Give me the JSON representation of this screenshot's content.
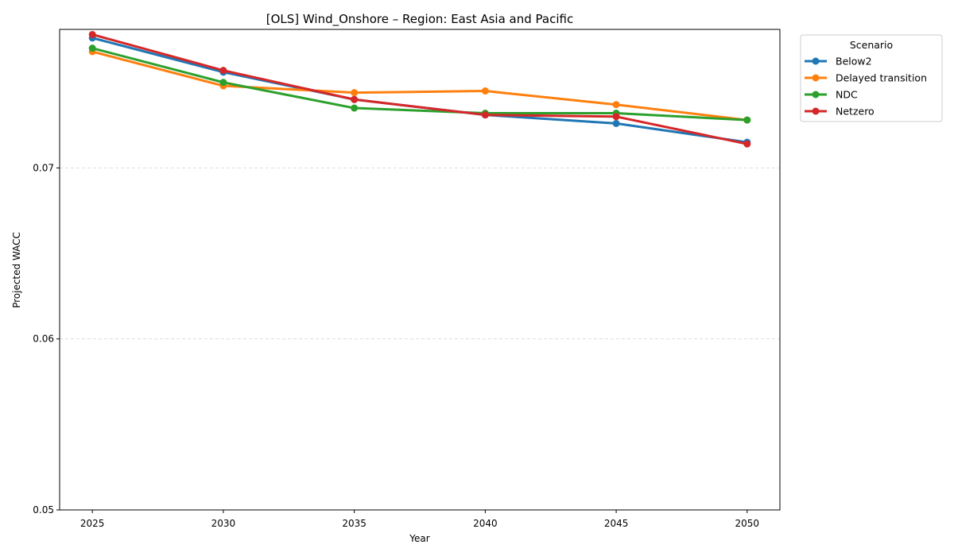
{
  "chart_data": {
    "type": "line",
    "title": "[OLS] Wind_Onshore – Region: East Asia and Pacific",
    "xlabel": "Year",
    "ylabel": "Projected WACC",
    "x": [
      2025,
      2030,
      2035,
      2040,
      2045,
      2050
    ],
    "x_ticks": [
      "2025",
      "2030",
      "2035",
      "2040",
      "2045",
      "2050"
    ],
    "y_ticks": [
      {
        "value": 0.05,
        "label": "0.05"
      },
      {
        "value": 0.06,
        "label": "0.06"
      },
      {
        "value": 0.07,
        "label": "0.07"
      }
    ],
    "xlim": [
      2023.75,
      2051.25
    ],
    "ylim": [
      0.05,
      0.0781
    ],
    "grid": "horizontal dashed",
    "legend": {
      "title": "Scenario",
      "placement": "outside-top-right"
    },
    "series": [
      {
        "name": "Below2",
        "color": "#1f77b4",
        "values": [
          0.0776,
          0.0756,
          0.074,
          0.0731,
          0.0726,
          0.0715
        ]
      },
      {
        "name": "Delayed transition",
        "color": "#ff7f0e",
        "values": [
          0.0768,
          0.0748,
          0.0744,
          0.0745,
          0.0737,
          0.0728
        ]
      },
      {
        "name": "NDC",
        "color": "#2ca02c",
        "values": [
          0.077,
          0.075,
          0.0735,
          0.0732,
          0.0732,
          0.0728
        ]
      },
      {
        "name": "Netzero",
        "color": "#d62728",
        "values": [
          0.0778,
          0.0757,
          0.074,
          0.0731,
          0.073,
          0.0714
        ]
      }
    ]
  }
}
